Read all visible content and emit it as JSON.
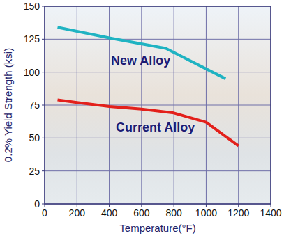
{
  "chart_data": {
    "type": "line",
    "x_label": "Temperature(°F)",
    "y_label": "0.2% Yield Strength (ksi)",
    "series": [
      {
        "name": "New Alloy",
        "color": "#1fb3c2",
        "x": [
          80,
          400,
          750,
          1120
        ],
        "values": [
          134,
          126,
          118,
          95
        ]
      },
      {
        "name": "Current Alloy",
        "color": "#e3201b",
        "x": [
          80,
          200,
          400,
          600,
          800,
          1000,
          1200
        ],
        "values": [
          79,
          77,
          74,
          72,
          69,
          62,
          44
        ]
      }
    ],
    "xlim": [
      0,
      1400
    ],
    "xticks": [
      0,
      200,
      400,
      600,
      800,
      1000,
      1200,
      1400
    ],
    "ylim": [
      0,
      150
    ],
    "yticks": [
      0,
      25,
      50,
      75,
      100,
      125,
      150
    ],
    "grid": true
  }
}
